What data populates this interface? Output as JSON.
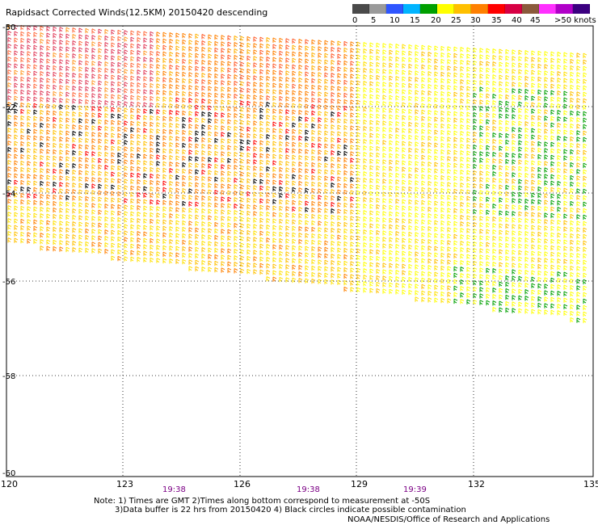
{
  "title": "Rapidsact Corrected Winds(12.5KM) 20150420 descending",
  "legend": {
    "colors": [
      "#4a4a4a",
      "#9a9a9a",
      "#2f56ff",
      "#00b4ff",
      "#00a000",
      "#ffff00",
      "#ffc000",
      "#ff8000",
      "#ff0000",
      "#d70044",
      "#8b5a3c",
      "#ff30ff",
      "#b000c8",
      "#3b0080"
    ],
    "labels": [
      "0",
      "5",
      "10",
      "15",
      "20",
      "25",
      "30",
      "35",
      "40",
      "45",
      ">50 knots"
    ]
  },
  "map": {
    "lat_labels": [
      "-50",
      "-52",
      "-54",
      "-56",
      "-58",
      "-60"
    ],
    "lon_labels": [
      "120",
      "123",
      "126",
      "129",
      "132",
      "135"
    ],
    "time_labels": [
      "19:38",
      "19:38",
      "19:39"
    ],
    "lat_range": [
      -60,
      -50
    ],
    "lon_range": [
      120,
      135
    ],
    "grid": "dotted every 2 deg latitude and 3 deg longitude"
  },
  "notes": {
    "line1": "Note: 1) Times are GMT 2)Times along bottom correspond to measurement at -50S",
    "line2": "3)Data buffer is 22 hrs from 20150420 4) Black circles indicate possible contamination"
  },
  "credit": "NOAA/NESDIS/Office of Research and Applications"
}
